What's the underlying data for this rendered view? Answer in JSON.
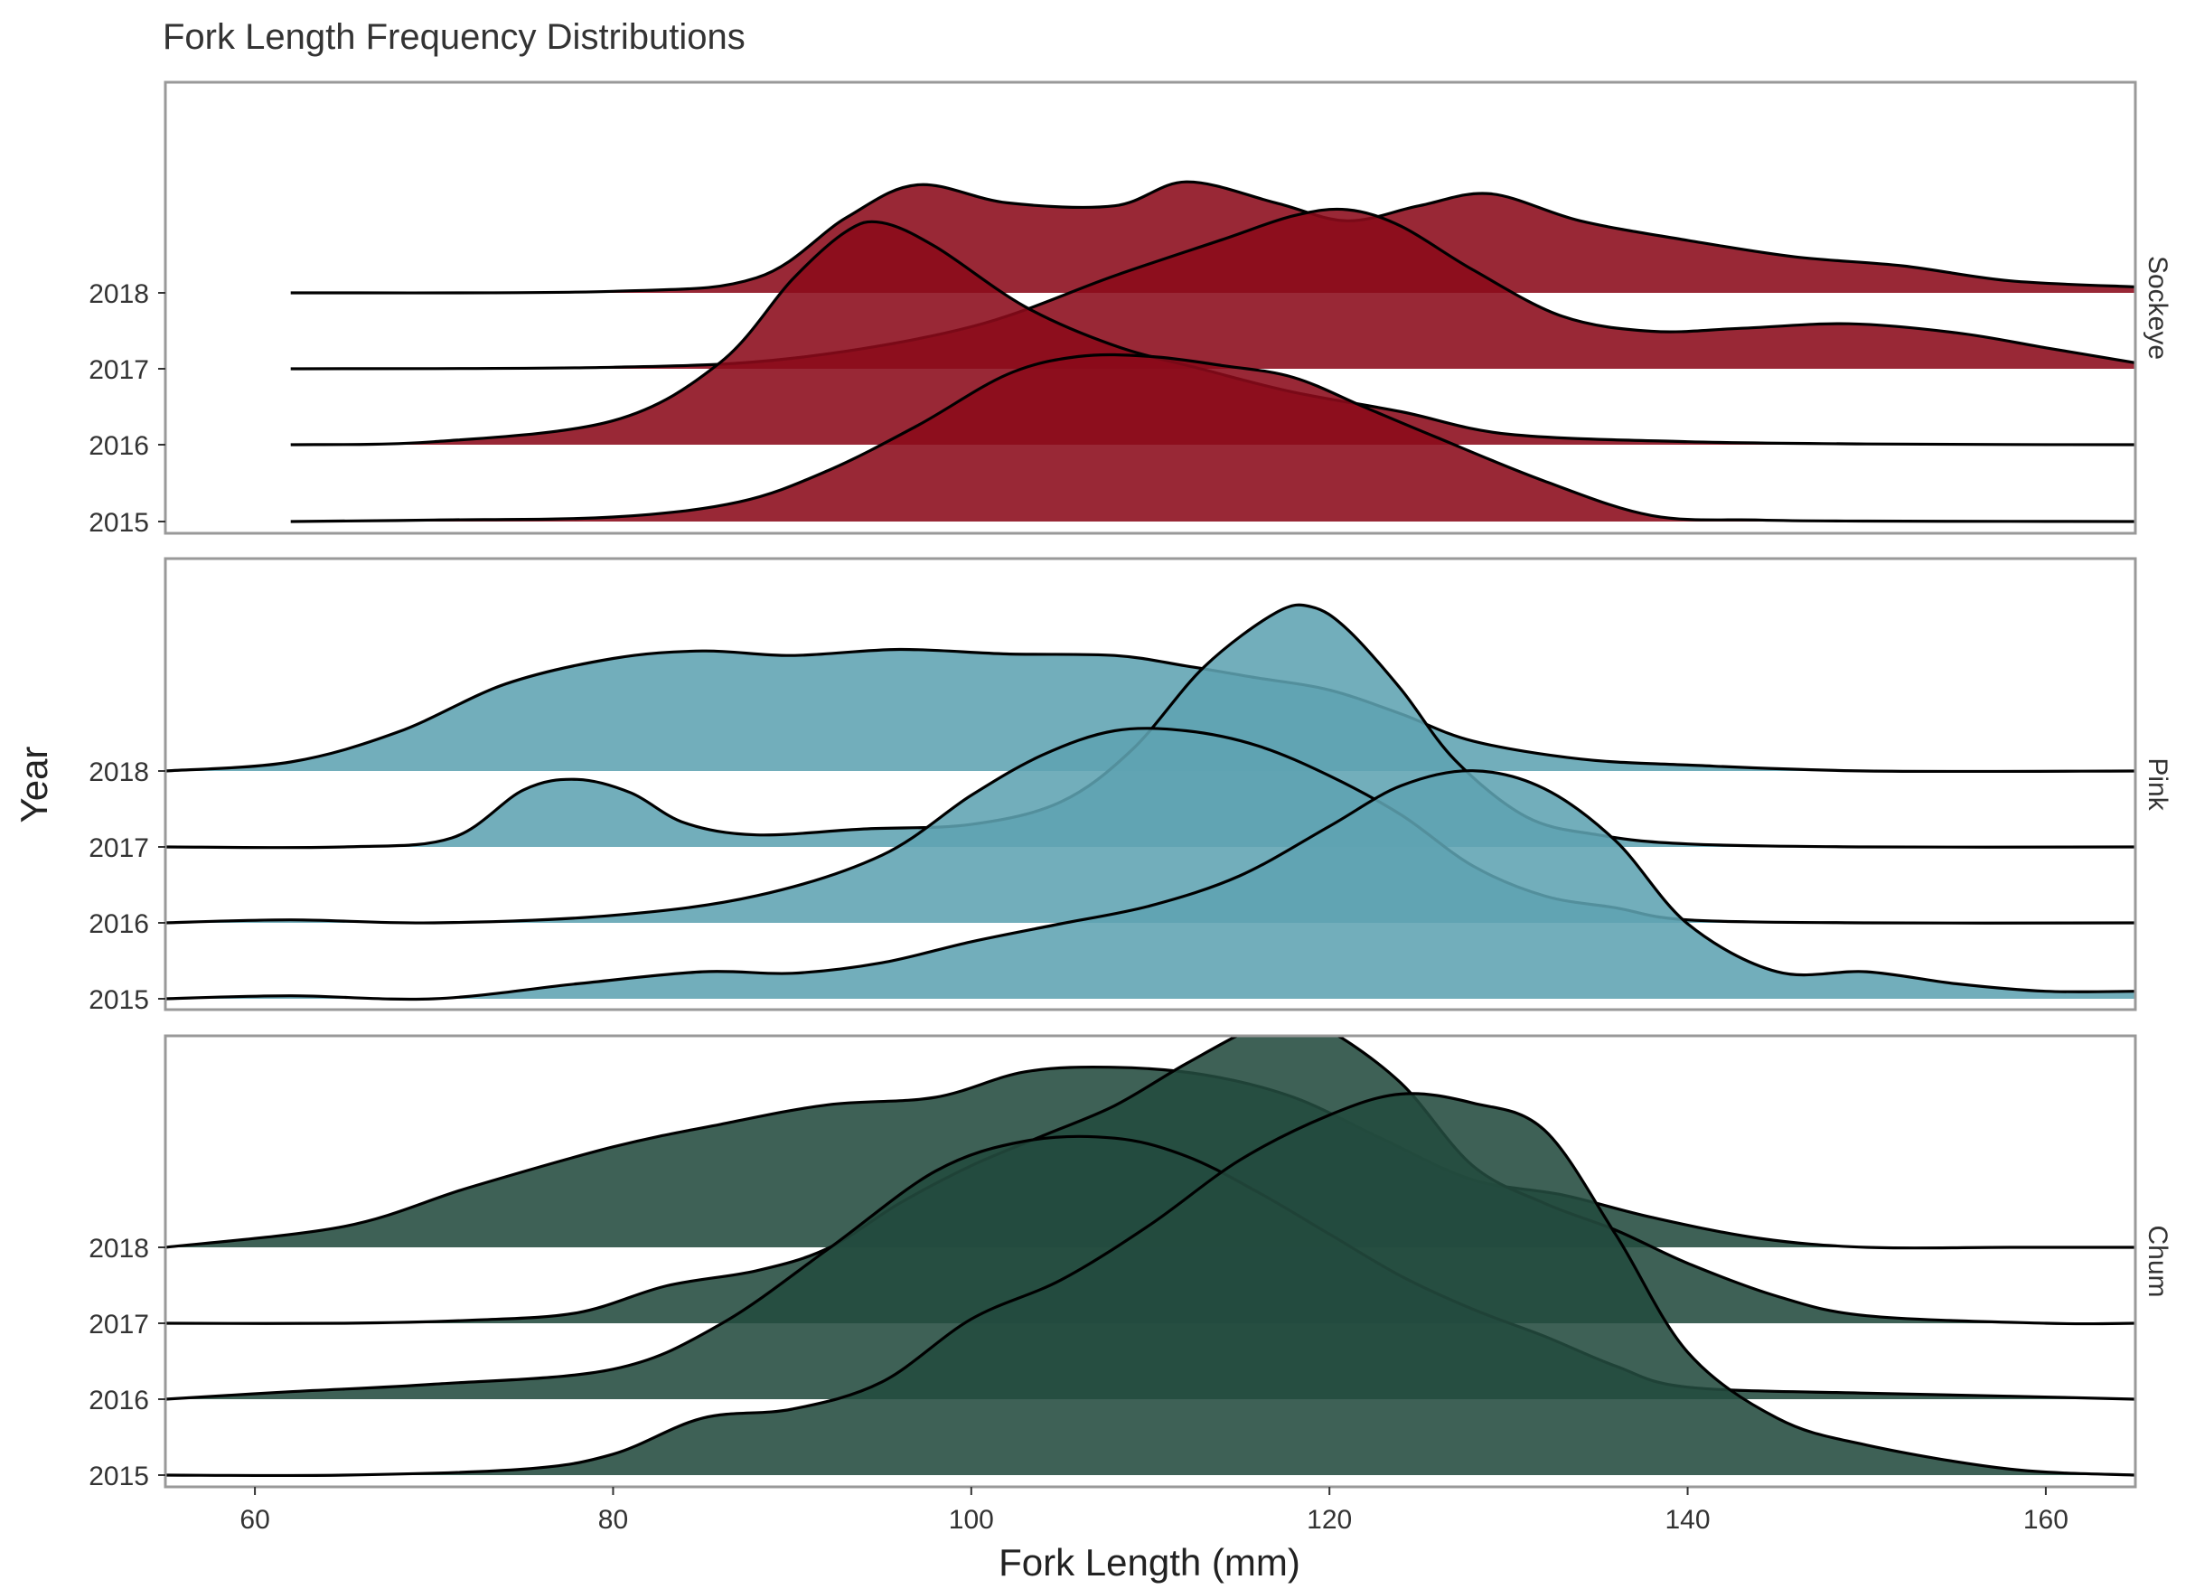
{
  "chart_data": {
    "type": "area",
    "subtype": "ridgeline",
    "title": "Fork Length Frequency Distributions",
    "xlabel": "Fork Length (mm)",
    "ylabel": "Year",
    "xlim": [
      55,
      165
    ],
    "x_ticks": [
      60,
      80,
      100,
      120,
      140,
      160
    ],
    "years": [
      "2015",
      "2016",
      "2017",
      "2018"
    ],
    "grid": false,
    "colors": {
      "Sockeye": "#8b0a1a",
      "Pink": "#5fa3b2",
      "Chum": "#234b3f",
      "outline": "#000000",
      "panel_border": "#999999"
    },
    "panels": [
      {
        "species": "Sockeye",
        "series": [
          {
            "year": "2018",
            "start": 62,
            "x": [
              62,
              80,
              88,
              93,
              97,
              102,
              108,
              112,
              117,
              121,
              125,
              129,
              134,
              140,
              146,
              152,
              158,
              165
            ],
            "y": [
              0,
              0.01,
              0.1,
              0.5,
              0.72,
              0.6,
              0.58,
              0.74,
              0.6,
              0.48,
              0.58,
              0.66,
              0.48,
              0.35,
              0.24,
              0.18,
              0.08,
              0.04
            ]
          },
          {
            "year": "2017",
            "start": 62,
            "x": [
              62,
              80,
              90,
              100,
              108,
              114,
              118,
              121,
              124,
              128,
              133,
              138,
              143,
              149,
              155,
              160,
              165
            ],
            "y": [
              0,
              0.01,
              0.07,
              0.28,
              0.62,
              0.86,
              1.02,
              1.06,
              0.95,
              0.66,
              0.35,
              0.25,
              0.27,
              0.3,
              0.24,
              0.14,
              0.04
            ]
          },
          {
            "year": "2016",
            "start": 62,
            "x": [
              62,
              70,
              80,
              86,
              90,
              93,
              95,
              98,
              103,
              108,
              113,
              118,
              124,
              130,
              140,
              150,
              158,
              165
            ],
            "y": [
              0,
              0.02,
              0.16,
              0.55,
              1.1,
              1.42,
              1.48,
              1.32,
              0.92,
              0.66,
              0.5,
              0.35,
              0.22,
              0.07,
              0.02,
              0.005,
              0.001,
              0
            ]
          },
          {
            "year": "2015",
            "start": 62,
            "x": [
              62,
              70,
              80,
              87,
              92,
              97,
              102,
              106,
              110,
              114,
              118,
              122,
              126,
              132,
              138,
              144,
              150,
              158,
              165
            ],
            "y": [
              0,
              0.01,
              0.03,
              0.13,
              0.34,
              0.64,
              0.98,
              1.1,
              1.1,
              1.04,
              0.96,
              0.76,
              0.56,
              0.27,
              0.04,
              0.01,
              0.003,
              0.001,
              0
            ]
          }
        ]
      },
      {
        "species": "Pink",
        "series": [
          {
            "year": "2018",
            "start": 55,
            "x": [
              55,
              62,
              68,
              74,
              80,
              85,
              90,
              96,
              102,
              108,
              112,
              116,
              120,
              124,
              128,
              134,
              140,
              150,
              165
            ],
            "y": [
              0,
              0.06,
              0.26,
              0.58,
              0.75,
              0.8,
              0.77,
              0.81,
              0.78,
              0.77,
              0.7,
              0.62,
              0.54,
              0.38,
              0.2,
              0.08,
              0.04,
              0,
              0
            ]
          },
          {
            "year": "2017",
            "start": 55,
            "x": [
              55,
              65,
              71,
              75,
              78,
              81,
              84,
              88,
              94,
              100,
              105,
              109,
              113,
              117,
              119,
              121,
              124,
              127,
              131,
              135,
              140,
              150,
              165
            ],
            "y": [
              0,
              0,
              0.06,
              0.38,
              0.45,
              0.36,
              0.16,
              0.08,
              0.12,
              0.15,
              0.3,
              0.65,
              1.2,
              1.56,
              1.6,
              1.45,
              1.05,
              0.58,
              0.2,
              0.08,
              0.02,
              0,
              0
            ]
          },
          {
            "year": "2016",
            "start": 55,
            "x": [
              55,
              62,
              70,
              80,
              88,
              95,
              100,
              104,
              108,
              112,
              116,
              120,
              124,
              128,
              132,
              136,
              140,
              150,
              165
            ],
            "y": [
              0,
              0.02,
              0,
              0.05,
              0.18,
              0.45,
              0.85,
              1.12,
              1.28,
              1.28,
              1.18,
              0.98,
              0.72,
              0.38,
              0.18,
              0.1,
              0.02,
              0,
              0
            ]
          },
          {
            "year": "2015",
            "start": 55,
            "x": [
              55,
              62,
              70,
              78,
              85,
              90,
              95,
              100,
              105,
              110,
              115,
              120,
              124,
              128,
              132,
              136,
              140,
              145,
              150,
              155,
              160,
              165
            ],
            "y": [
              0,
              0.02,
              0,
              0.1,
              0.18,
              0.17,
              0.24,
              0.38,
              0.5,
              0.62,
              0.82,
              1.15,
              1.42,
              1.52,
              1.4,
              1.05,
              0.5,
              0.18,
              0.18,
              0.1,
              0.05,
              0.05
            ]
          }
        ]
      },
      {
        "species": "Chum",
        "series": [
          {
            "year": "2018",
            "start": 55,
            "x": [
              55,
              65,
              72,
              80,
              86,
              92,
              98,
              103,
              108,
              113,
              118,
              123,
              128,
              133,
              138,
              144,
              150,
              158,
              165
            ],
            "y": [
              0,
              0.14,
              0.4,
              0.67,
              0.82,
              0.95,
              1.0,
              1.17,
              1.2,
              1.15,
              1.0,
              0.72,
              0.45,
              0.35,
              0.2,
              0.06,
              0,
              0,
              0
            ]
          },
          {
            "year": "2017",
            "start": 55,
            "x": [
              55,
              65,
              72,
              78,
              83,
              88,
              92,
              96,
              100,
              104,
              108,
              112,
              116,
              118,
              120,
              124,
              128,
              132,
              136,
              140,
              145,
              150,
              160,
              165
            ],
            "y": [
              0,
              0,
              0.02,
              0.07,
              0.25,
              0.35,
              0.5,
              0.8,
              1.05,
              1.25,
              1.45,
              1.73,
              1.98,
              2.0,
              1.95,
              1.6,
              1.05,
              0.8,
              0.62,
              0.4,
              0.18,
              0.05,
              0,
              0
            ]
          },
          {
            "year": "2016",
            "start": 55,
            "x": [
              55,
              62,
              70,
              80,
              86,
              92,
              98,
              103,
              108,
              112,
              116,
              120,
              124,
              128,
              132,
              136,
              140,
              150,
              158,
              165
            ],
            "y": [
              0,
              0.05,
              0.1,
              0.2,
              0.5,
              1.0,
              1.52,
              1.72,
              1.74,
              1.62,
              1.38,
              1.1,
              0.82,
              0.6,
              0.42,
              0.22,
              0.08,
              0.04,
              0.02,
              0
            ]
          },
          {
            "year": "2015",
            "start": 55,
            "x": [
              55,
              65,
              75,
              80,
              85,
              90,
              95,
              100,
              105,
              110,
              115,
              120,
              124,
              128,
              132,
              136,
              140,
              145,
              150,
              158,
              165
            ],
            "y": [
              0,
              0,
              0.04,
              0.14,
              0.38,
              0.44,
              0.62,
              1.04,
              1.3,
              1.67,
              2.1,
              2.4,
              2.54,
              2.48,
              2.3,
              1.6,
              0.82,
              0.38,
              0.2,
              0.04,
              0
            ]
          }
        ]
      }
    ]
  }
}
